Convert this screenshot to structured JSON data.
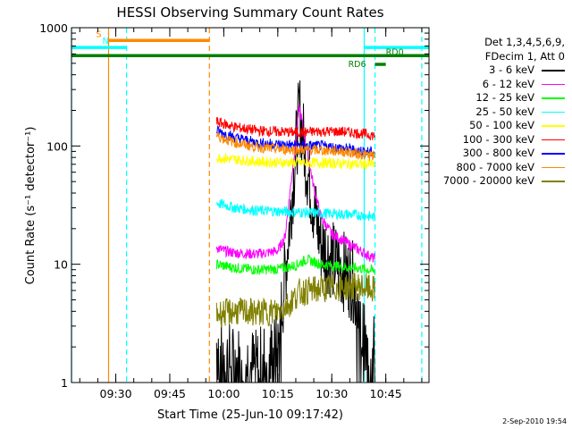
{
  "chart_data": {
    "type": "line",
    "title": "HESSI Observing Summary Count Rates",
    "xlabel": "Start Time (25-Jun-10 09:17:42)",
    "ylabel": "Count Rate (s⁻¹ detector⁻¹)",
    "yscale": "log",
    "ylim": [
      1,
      1000
    ],
    "xlim": [
      "09:17:42",
      "10:57"
    ],
    "y_ticks": [
      {
        "value": 1,
        "label": "1"
      },
      {
        "value": 10,
        "label": "10"
      },
      {
        "value": 100,
        "label": "100"
      },
      {
        "value": 1000,
        "label": "1000"
      }
    ],
    "x_ticks": [
      "09:30",
      "09:45",
      "10:00",
      "10:15",
      "10:30",
      "10:45"
    ],
    "legend_header": [
      "Det 1,3,4,5,6,9,",
      "FDecim 1, Att 0"
    ],
    "legend_position": "right",
    "series": [
      {
        "name": "3 - 6 keV",
        "color": "#000000",
        "points": [
          [
            "09:58",
            2.2
          ],
          [
            "10:00",
            1.6
          ],
          [
            "10:03",
            1.4
          ],
          [
            "10:06",
            1.5
          ],
          [
            "10:09",
            1.3
          ],
          [
            "10:12",
            1.6
          ],
          [
            "10:15",
            1.8
          ],
          [
            "10:17",
            8
          ],
          [
            "10:19",
            40
          ],
          [
            "10:21",
            200
          ],
          [
            "10:23",
            70
          ],
          [
            "10:25",
            30
          ],
          [
            "10:27",
            15
          ],
          [
            "10:30",
            11
          ],
          [
            "10:33",
            9
          ],
          [
            "10:36",
            7
          ],
          [
            "10:38",
            3
          ],
          [
            "10:40",
            1.5
          ],
          [
            "10:42",
            1.8
          ]
        ]
      },
      {
        "name": "6 - 12 keV",
        "color": "#ff00ff",
        "points": [
          [
            "09:58",
            14
          ],
          [
            "10:00",
            13
          ],
          [
            "10:03",
            12.5
          ],
          [
            "10:06",
            12.3
          ],
          [
            "10:09",
            12.2
          ],
          [
            "10:12",
            12.5
          ],
          [
            "10:15",
            13
          ],
          [
            "10:17",
            17
          ],
          [
            "10:19",
            60
          ],
          [
            "10:21",
            215
          ],
          [
            "10:23",
            95
          ],
          [
            "10:25",
            45
          ],
          [
            "10:27",
            25
          ],
          [
            "10:30",
            18
          ],
          [
            "10:33",
            16
          ],
          [
            "10:36",
            14
          ],
          [
            "10:38",
            13
          ],
          [
            "10:42",
            11
          ]
        ]
      },
      {
        "name": "12 - 25 keV",
        "color": "#00ff00",
        "points": [
          [
            "09:58",
            10
          ],
          [
            "10:03",
            9.3
          ],
          [
            "10:09",
            9.0
          ],
          [
            "10:15",
            9.1
          ],
          [
            "10:20",
            9.8
          ],
          [
            "10:23",
            11
          ],
          [
            "10:27",
            10
          ],
          [
            "10:33",
            9.5
          ],
          [
            "10:38",
            9.2
          ],
          [
            "10:42",
            8.8
          ]
        ]
      },
      {
        "name": "25 - 50 keV",
        "color": "#00ffff",
        "points": [
          [
            "09:58",
            33
          ],
          [
            "10:03",
            30
          ],
          [
            "10:09",
            28.5
          ],
          [
            "10:15",
            28
          ],
          [
            "10:21",
            27.5
          ],
          [
            "10:27",
            27
          ],
          [
            "10:33",
            26.5
          ],
          [
            "10:38",
            26
          ],
          [
            "10:42",
            25
          ]
        ]
      },
      {
        "name": "50 - 100 keV",
        "color": "#ffff00",
        "points": [
          [
            "09:58",
            80
          ],
          [
            "10:03",
            77
          ],
          [
            "10:09",
            74
          ],
          [
            "10:15",
            72.5
          ],
          [
            "10:21",
            72
          ],
          [
            "10:27",
            72
          ],
          [
            "10:33",
            71
          ],
          [
            "10:38",
            70
          ],
          [
            "10:42",
            70
          ]
        ]
      },
      {
        "name": "100 - 300 keV",
        "color": "#ff0000",
        "points": [
          [
            "09:58",
            160
          ],
          [
            "10:03",
            145
          ],
          [
            "10:09",
            135
          ],
          [
            "10:15",
            132
          ],
          [
            "10:21",
            130
          ],
          [
            "10:27",
            133
          ],
          [
            "10:33",
            132
          ],
          [
            "10:38",
            128
          ],
          [
            "10:42",
            122
          ]
        ]
      },
      {
        "name": "300 - 800 keV",
        "color": "#0000ff",
        "points": [
          [
            "09:58",
            135
          ],
          [
            "10:03",
            118
          ],
          [
            "10:09",
            107
          ],
          [
            "10:15",
            103
          ],
          [
            "10:21",
            101
          ],
          [
            "10:27",
            100
          ],
          [
            "10:33",
            96
          ],
          [
            "10:38",
            91
          ],
          [
            "10:42",
            88
          ]
        ]
      },
      {
        "name": "800 - 7000 keV",
        "color": "#ff8800",
        "points": [
          [
            "09:58",
            122
          ],
          [
            "10:03",
            107
          ],
          [
            "10:09",
            98
          ],
          [
            "10:15",
            94
          ],
          [
            "10:21",
            93
          ],
          [
            "10:27",
            92
          ],
          [
            "10:33",
            90
          ],
          [
            "10:38",
            85
          ],
          [
            "10:42",
            82
          ]
        ]
      },
      {
        "name": "7000 - 20000 keV",
        "color": "#808000",
        "points": [
          [
            "09:58",
            3.8
          ],
          [
            "10:03",
            4.0
          ],
          [
            "10:09",
            3.9
          ],
          [
            "10:15",
            4.0
          ],
          [
            "10:18",
            4.6
          ],
          [
            "10:21",
            5.8
          ],
          [
            "10:27",
            6.2
          ],
          [
            "10:33",
            6.4
          ],
          [
            "10:38",
            6.5
          ],
          [
            "10:42",
            6.0
          ]
        ]
      }
    ],
    "vertical_lines": [
      {
        "time": "09:17:42",
        "color": "#00ffff",
        "style": "solid"
      },
      {
        "time": "09:28",
        "color": "#ff8800",
        "style": "solid"
      },
      {
        "time": "09:33",
        "color": "#00ffff",
        "style": "dashed"
      },
      {
        "time": "09:56",
        "color": "#ff8800",
        "style": "dashed"
      },
      {
        "time": "10:39",
        "color": "#00ffff",
        "style": "solid"
      },
      {
        "time": "10:42",
        "color": "#00ffff",
        "style": "dashed"
      },
      {
        "time": "10:55",
        "color": "#00ffff",
        "style": "dashed"
      }
    ],
    "bars": [
      {
        "label": "S",
        "color": "#ff8800",
        "start": "09:28",
        "end": "09:56",
        "level": 780
      },
      {
        "label": "N",
        "color": "#00ffff",
        "start": "09:17:42",
        "end": "09:33",
        "level": 680
      },
      {
        "label": "",
        "color": "#00ffff",
        "start": "10:39",
        "end": "10:57",
        "level": 680
      },
      {
        "label": "RD0",
        "color": "#008000",
        "start": "09:17:42",
        "end": "10:57",
        "level": 580
      },
      {
        "label": "RD6",
        "color": "#008000",
        "start": "10:42",
        "end": "10:45",
        "level": 490
      }
    ]
  },
  "footer": {
    "date": "2-Sep-2010 19:54"
  }
}
